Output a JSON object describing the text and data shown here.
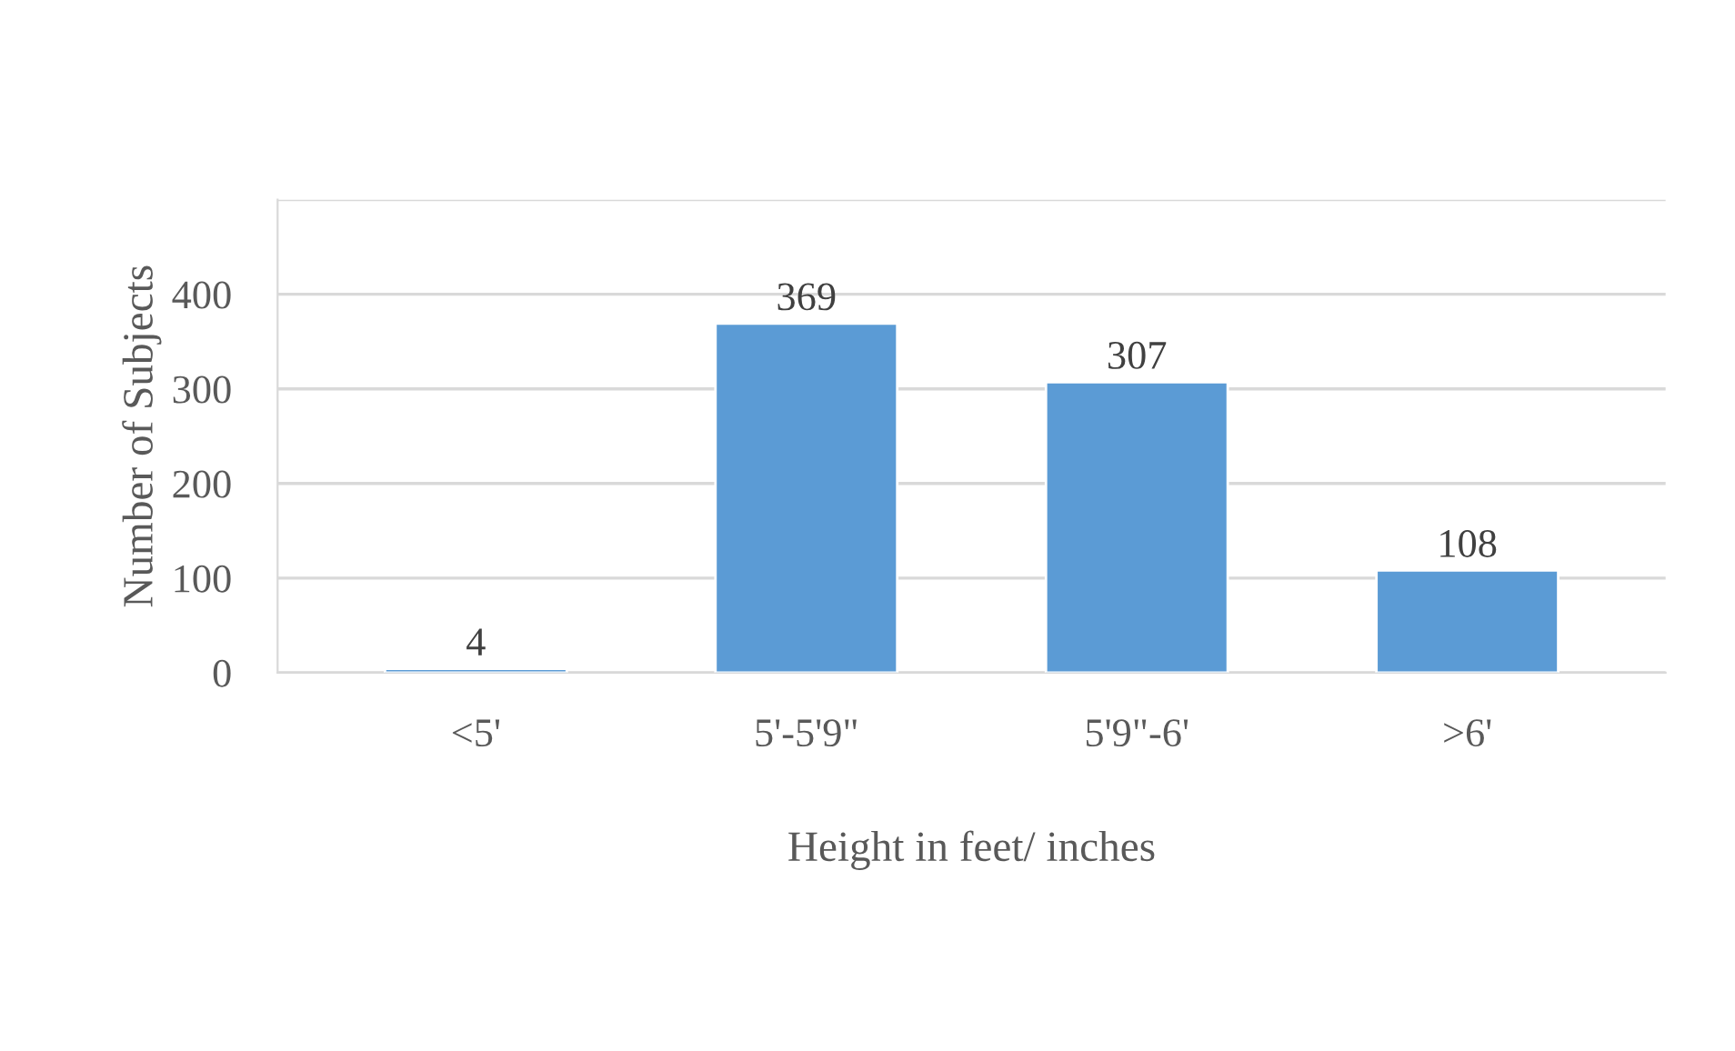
{
  "chart_data": {
    "type": "bar",
    "xlabel": "Height in feet/ inches",
    "ylabel": "Number of Subjects",
    "categories": [
      "<5'",
      "5'-5'9\"",
      "5'9\"-6'",
      ">6'"
    ],
    "values": [
      4,
      369,
      307,
      108
    ],
    "color": "#5b9bd5",
    "ylim": [
      0,
      500
    ],
    "yticks": [
      0,
      100,
      200,
      300,
      400,
      {
        "value": 500,
        "label": null
      }
    ],
    "grid": "y",
    "data_labels": true,
    "legend": false
  }
}
